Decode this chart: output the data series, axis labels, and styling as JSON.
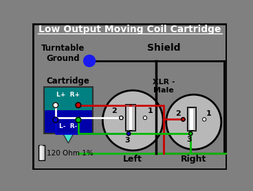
{
  "title": "Low Output Moving Coil Cartridge",
  "bg_color": "#808080",
  "title_color": "white",
  "turntable_ground_label": "Turntable\nGround",
  "shield_label": "Shield",
  "cartridge_label": "Cartridge",
  "xlr_label": "XLR -\nMale",
  "left_label": "Left",
  "right_label": "Right",
  "resistor_label": "120 Ohm 1%",
  "cartridge_color_top": "#008080",
  "cartridge_color_bot": "#0000aa",
  "circle_color": "#b8b8b8",
  "xlr_body_color": "#c8c8c8",
  "pin_colors": [
    "white",
    "#cc0000",
    "#0000cc",
    "#00bb00"
  ],
  "blue_dot_color": "#1a1aee",
  "wire_black": "#000000",
  "wire_red": "#cc0000",
  "wire_white": "#ffffff",
  "wire_blue": "#0000cc",
  "wire_green": "#00bb00"
}
